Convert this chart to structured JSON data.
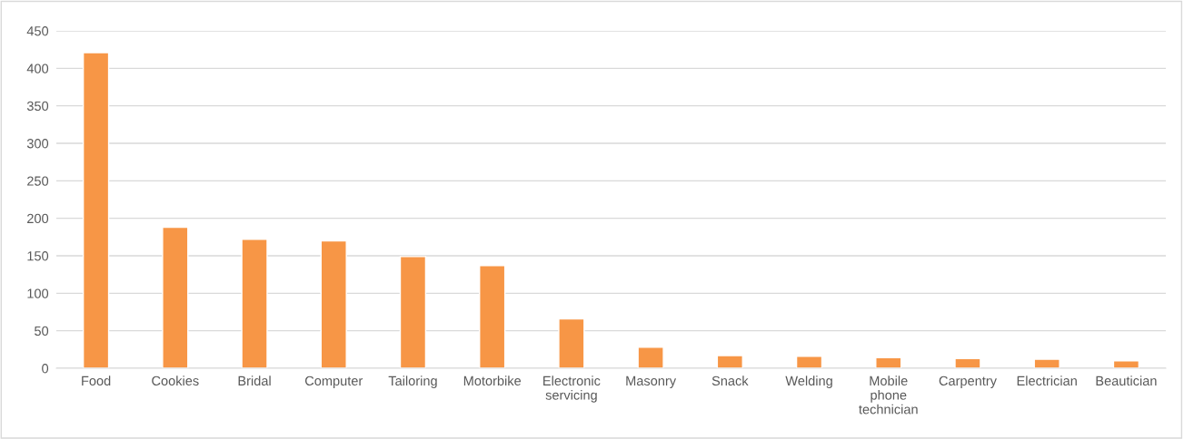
{
  "chart_data": {
    "type": "bar",
    "categories": [
      "Food",
      "Cookies",
      "Bridal",
      "Computer",
      "Tailoring",
      "Motorbike",
      "Electronic\nservicing",
      "Masonry",
      "Snack",
      "Welding",
      "Mobile\nphone\ntechnician",
      "Carpentry",
      "Electrician",
      "Beautician"
    ],
    "values": [
      421,
      188,
      172,
      170,
      149,
      137,
      66,
      28,
      17,
      16,
      14,
      13,
      12,
      10
    ],
    "color": "#f79646",
    "ylim": [
      0,
      450
    ],
    "yticks": [
      0,
      50,
      100,
      150,
      200,
      250,
      300,
      350,
      400,
      450
    ],
    "grid": "y"
  }
}
